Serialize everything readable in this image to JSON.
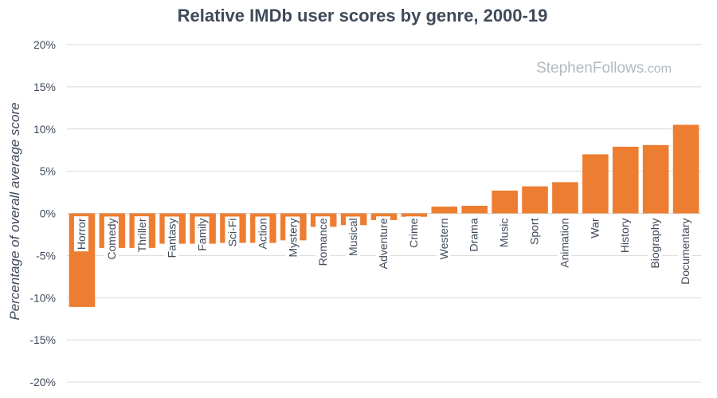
{
  "chart_data": {
    "type": "bar",
    "title": "Relative IMDb user scores by genre, 2000-19",
    "ylabel": "Percentage of overall average score",
    "xlabel": "",
    "ylim": [
      -20,
      20
    ],
    "yticks": [
      20,
      15,
      10,
      5,
      0,
      -5,
      -10,
      -15,
      -20
    ],
    "ytick_labels": [
      "20%",
      "15%",
      "10%",
      "5%",
      "0%",
      "-5%",
      "-10%",
      "-15%",
      "-20%"
    ],
    "grid": true,
    "categories": [
      "Horror",
      "Comedy",
      "Thriller",
      "Fantasy",
      "Family",
      "Sci-Fi",
      "Action",
      "Mystery",
      "Romance",
      "Musical",
      "Adventure",
      "Crime",
      "Western",
      "Drama",
      "Music",
      "Sport",
      "Animation",
      "War",
      "History",
      "Biography",
      "Documentary"
    ],
    "values": [
      -11.1,
      -4.1,
      -4.1,
      -3.6,
      -3.6,
      -3.5,
      -3.5,
      -3.2,
      -1.6,
      -1.4,
      -0.8,
      -0.4,
      0.8,
      0.9,
      2.7,
      3.2,
      3.7,
      7.0,
      7.9,
      8.1,
      10.5
    ],
    "bar_color": "#ed7d31"
  },
  "watermark": {
    "main": "StephenFollows",
    "domain": ".com"
  }
}
